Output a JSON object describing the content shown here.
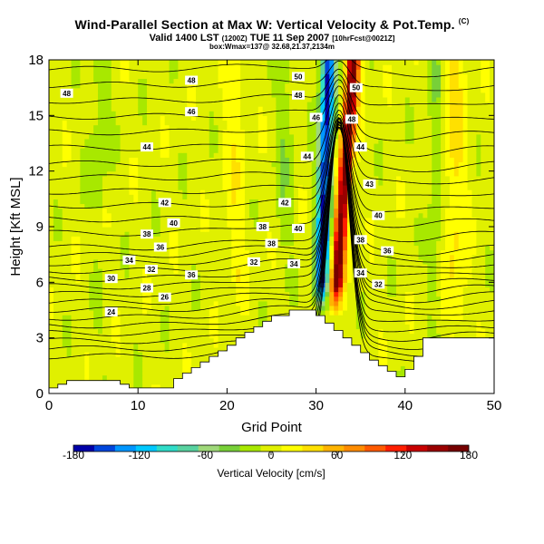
{
  "header": {
    "title": "Wind-Parallel Section at Max W: Vertical Velocity & Pot.Temp.",
    "copyright": "(C)",
    "valid_main": "Valid 1400 LST",
    "valid_small1": "(1200Z)",
    "valid_day": "TUE 11 Sep 2007",
    "valid_small2": "[10hrFcst@0021Z]",
    "subtitle": "box:Wmax=137@ 32.68,21.37,2134m"
  },
  "chart_data": {
    "type": "heatmap",
    "title": "Wind-Parallel Section at Max W: Vertical Velocity & Pot.Temp.",
    "xlabel": "Grid Point",
    "ylabel": "Height [Kft MSL]",
    "xlim": [
      0,
      50
    ],
    "ylim": [
      0,
      18
    ],
    "xticks": [
      0,
      10,
      20,
      30,
      40,
      50
    ],
    "yticks": [
      0,
      3,
      6,
      9,
      12,
      15,
      18
    ],
    "colorbar": {
      "label": "Vertical Velocity [cm/s]",
      "ticks": [
        -180,
        -120,
        -60,
        0,
        60,
        120,
        180
      ],
      "min": -180,
      "max": 180,
      "colors": [
        "#0000a8",
        "#0046dc",
        "#0096ff",
        "#00c8ff",
        "#30dcc8",
        "#58d2a0",
        "#9fd87a",
        "#78d038",
        "#a8e800",
        "#e0f000",
        "#ffff00",
        "#ffe000",
        "#ffb400",
        "#ff8c00",
        "#ff5a00",
        "#ff1e00",
        "#c80000",
        "#9a0000",
        "#760000"
      ]
    },
    "terrain": {
      "x": [
        0,
        1,
        1,
        2,
        2,
        8,
        8,
        9,
        9,
        14,
        14,
        15,
        15,
        16,
        16,
        17,
        17,
        18,
        18,
        19,
        19,
        20,
        20,
        21,
        21,
        22,
        22,
        23,
        23,
        24,
        24,
        25,
        25,
        27,
        27,
        30,
        30,
        31,
        31,
        32,
        32,
        33,
        33,
        34,
        34,
        35,
        35,
        36,
        36,
        37,
        37,
        38,
        38,
        39,
        39,
        40,
        40,
        41,
        41,
        42,
        42,
        45,
        45,
        50
      ],
      "height": [
        0.3,
        0.3,
        0.5,
        0.5,
        0.7,
        0.7,
        0.5,
        0.5,
        0.3,
        0.3,
        0.8,
        0.8,
        1.1,
        1.1,
        1.4,
        1.4,
        1.7,
        1.7,
        2.0,
        2.0,
        2.3,
        2.3,
        2.6,
        2.6,
        3.0,
        3.0,
        3.3,
        3.3,
        3.6,
        3.6,
        3.9,
        3.9,
        4.2,
        4.2,
        4.5,
        4.5,
        4.2,
        4.2,
        3.8,
        3.8,
        3.4,
        3.4,
        3.0,
        3.0,
        2.6,
        2.6,
        2.2,
        2.2,
        1.8,
        1.8,
        1.5,
        1.5,
        1.2,
        1.2,
        0.9,
        0.9,
        1.3,
        1.3,
        2.0,
        2.0,
        3.0,
        3.0,
        3.0,
        3.0
      ]
    },
    "theta_contours": {
      "levels": [
        24,
        25,
        26,
        27,
        28,
        29,
        30,
        31,
        32,
        33,
        34,
        35,
        36,
        37,
        38,
        39,
        40,
        41,
        42,
        43,
        44,
        45,
        46,
        47,
        48,
        49,
        50
      ],
      "labels": [
        {
          "text": "48",
          "x": 2,
          "y": 16.2
        },
        {
          "text": "48",
          "x": 16,
          "y": 16.9
        },
        {
          "text": "46",
          "x": 16,
          "y": 15.2
        },
        {
          "text": "44",
          "x": 11,
          "y": 13.3
        },
        {
          "text": "44",
          "x": 29,
          "y": 12.8
        },
        {
          "text": "50",
          "x": 28,
          "y": 17.1
        },
        {
          "text": "48",
          "x": 28,
          "y": 16.1
        },
        {
          "text": "46",
          "x": 30,
          "y": 14.9
        },
        {
          "text": "42",
          "x": 13,
          "y": 10.3
        },
        {
          "text": "42",
          "x": 26.5,
          "y": 10.3
        },
        {
          "text": "40",
          "x": 14,
          "y": 9.2
        },
        {
          "text": "40",
          "x": 28,
          "y": 8.9
        },
        {
          "text": "38",
          "x": 11,
          "y": 8.6
        },
        {
          "text": "38",
          "x": 24,
          "y": 9.0
        },
        {
          "text": "38",
          "x": 25,
          "y": 8.1
        },
        {
          "text": "36",
          "x": 12.5,
          "y": 7.9
        },
        {
          "text": "36",
          "x": 16,
          "y": 6.4
        },
        {
          "text": "34",
          "x": 9,
          "y": 7.2
        },
        {
          "text": "34",
          "x": 27.5,
          "y": 7.0
        },
        {
          "text": "32",
          "x": 11.5,
          "y": 6.7
        },
        {
          "text": "32",
          "x": 23,
          "y": 7.1
        },
        {
          "text": "30",
          "x": 7,
          "y": 6.2
        },
        {
          "text": "28",
          "x": 11,
          "y": 5.7
        },
        {
          "text": "26",
          "x": 13,
          "y": 5.2
        },
        {
          "text": "24",
          "x": 7,
          "y": 4.4
        },
        {
          "text": "50",
          "x": 34.5,
          "y": 16.5
        },
        {
          "text": "48",
          "x": 34,
          "y": 14.8
        },
        {
          "text": "44",
          "x": 35,
          "y": 13.3
        },
        {
          "text": "43",
          "x": 36,
          "y": 11.3
        },
        {
          "text": "40",
          "x": 37,
          "y": 9.6
        },
        {
          "text": "38",
          "x": 35,
          "y": 8.3
        },
        {
          "text": "36",
          "x": 38,
          "y": 7.7
        },
        {
          "text": "34",
          "x": 35,
          "y": 6.5
        },
        {
          "text": "32",
          "x": 37,
          "y": 5.9
        }
      ]
    },
    "updraft": {
      "x_center": 33.2,
      "peak": 137
    },
    "downdraft": {
      "x_center": 30.8,
      "peak": -140
    }
  }
}
